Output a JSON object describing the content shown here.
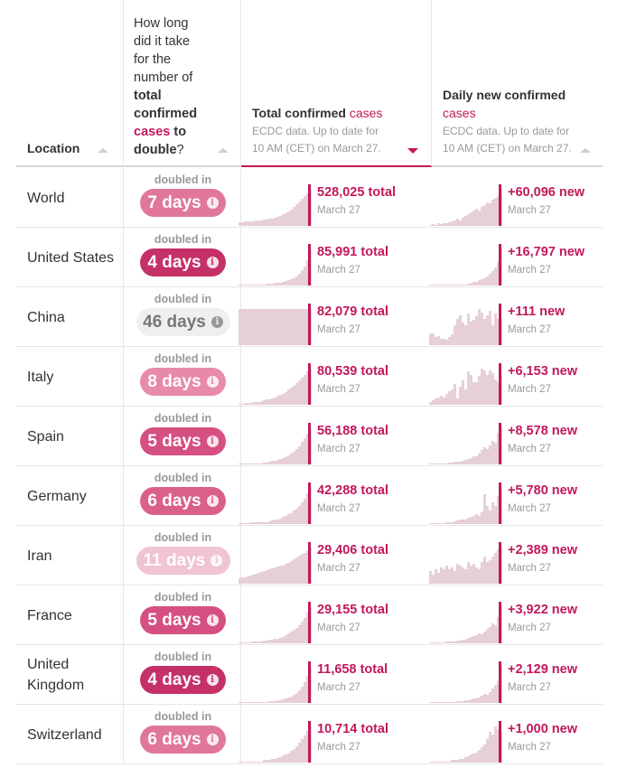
{
  "header": {
    "location": "Location",
    "doubling": {
      "line1": "How long did it take for the number of",
      "bold1": "total confirmed",
      "pink": "cases",
      "bold2": "to",
      "bold3": "double",
      "end": "?"
    },
    "total": {
      "title": "Total confirmed",
      "title_pink": "cases",
      "sub1": "ECDC data. Up to date for",
      "sub2": "10 AM (CET) on March 27."
    },
    "daily": {
      "title": "Daily new confirmed",
      "title_pink": "cases",
      "sub1": "ECDC data. Up to date for",
      "sub2": "10 AM (CET) on March 27."
    }
  },
  "doubled_label": "doubled in",
  "colors": {
    "accent": "#c2185b",
    "spark": "#e7cfd8"
  },
  "rows": [
    {
      "name": "World",
      "days": "7 days",
      "total": "528,025 total",
      "daily": "+60,096 new",
      "date": "March 27",
      "pill": "#e0779b",
      "total_series": [
        8,
        8,
        9,
        9,
        10,
        10,
        11,
        11,
        12,
        13,
        14,
        15,
        16,
        18,
        20,
        22,
        25,
        28,
        31,
        35,
        40,
        46,
        52,
        58,
        64,
        71,
        78
      ],
      "daily_series": [
        2,
        3,
        2,
        4,
        3,
        4,
        5,
        6,
        7,
        9,
        12,
        10,
        14,
        17,
        20,
        24,
        26,
        30,
        27,
        33,
        36,
        40,
        38,
        45,
        48,
        51,
        62
      ]
    },
    {
      "name": "United States",
      "days": "4 days",
      "total": "85,991 total",
      "daily": "+16,797 new",
      "date": "March 27",
      "pill": "#c53167",
      "total_series": [
        1,
        1,
        1,
        1,
        1,
        1,
        2,
        2,
        2,
        2,
        3,
        3,
        3,
        4,
        4,
        5,
        6,
        7,
        8,
        10,
        12,
        15,
        19,
        24,
        31,
        40,
        58
      ],
      "daily_series": [
        0,
        0,
        0,
        0,
        0,
        1,
        1,
        1,
        1,
        1,
        1,
        2,
        2,
        2,
        3,
        4,
        5,
        6,
        8,
        10,
        12,
        14,
        18,
        23,
        28,
        37,
        57
      ]
    },
    {
      "name": "China",
      "days": "46 days",
      "total": "82,079 total",
      "daily": "+111 new",
      "date": "March 27",
      "pill": "#efefef",
      "pill_text": "#777",
      "total_series": [
        62,
        62,
        62,
        62,
        62,
        62,
        62,
        62,
        62,
        62,
        62,
        62,
        62,
        62,
        62,
        62,
        62,
        62,
        62,
        62,
        62,
        62,
        62,
        62,
        62,
        62,
        62
      ],
      "daily_series": [
        18,
        18,
        12,
        14,
        10,
        10,
        8,
        12,
        16,
        30,
        40,
        45,
        34,
        30,
        48,
        36,
        38,
        44,
        55,
        50,
        40,
        46,
        52,
        30,
        48,
        40,
        40
      ]
    },
    {
      "name": "Italy",
      "days": "8 days",
      "total": "80,539 total",
      "daily": "+6,153 new",
      "date": "March 27",
      "pill": "#e88aaa",
      "total_series": [
        2,
        2,
        3,
        3,
        3,
        4,
        4,
        5,
        6,
        7,
        8,
        9,
        10,
        12,
        14,
        16,
        18,
        21,
        24,
        27,
        31,
        35,
        39,
        44,
        48,
        53,
        58
      ],
      "daily_series": [
        4,
        6,
        8,
        10,
        12,
        9,
        14,
        18,
        20,
        28,
        8,
        24,
        32,
        20,
        44,
        40,
        30,
        30,
        38,
        48,
        46,
        40,
        46,
        42,
        34,
        30,
        40
      ]
    },
    {
      "name": "Spain",
      "days": "5 days",
      "total": "56,188 total",
      "daily": "+8,578 new",
      "date": "March 27",
      "pill": "#d55080",
      "total_series": [
        1,
        1,
        1,
        1,
        1,
        1,
        2,
        2,
        2,
        3,
        3,
        4,
        5,
        6,
        7,
        8,
        10,
        12,
        14,
        17,
        20,
        24,
        29,
        35,
        42,
        49,
        57
      ],
      "daily_series": [
        0,
        1,
        1,
        1,
        1,
        1,
        1,
        2,
        2,
        3,
        3,
        4,
        5,
        6,
        7,
        8,
        10,
        10,
        14,
        18,
        22,
        20,
        24,
        30,
        28,
        40,
        46
      ]
    },
    {
      "name": "Germany",
      "days": "6 days",
      "total": "42,288 total",
      "daily": "+5,780 new",
      "date": "March 27",
      "pill": "#da6088",
      "total_series": [
        1,
        1,
        1,
        1,
        2,
        2,
        2,
        2,
        3,
        3,
        3,
        4,
        5,
        6,
        7,
        8,
        10,
        12,
        14,
        16,
        19,
        22,
        26,
        31,
        37,
        44,
        52
      ],
      "daily_series": [
        1,
        1,
        1,
        1,
        1,
        1,
        2,
        2,
        2,
        3,
        4,
        5,
        5,
        6,
        8,
        9,
        10,
        12,
        10,
        14,
        36,
        22,
        16,
        26,
        22,
        34,
        44
      ]
    },
    {
      "name": "Iran",
      "days": "11 days",
      "total": "29,406 total",
      "daily": "+2,389 new",
      "date": "March 27",
      "pill": "#f0c4d3",
      "total_series": [
        6,
        7,
        8,
        9,
        10,
        11,
        12,
        13,
        14,
        15,
        16,
        17,
        18,
        19,
        20,
        21,
        22,
        24,
        25,
        27,
        29,
        31,
        33,
        35,
        37,
        40,
        43
      ],
      "daily_series": [
        14,
        10,
        16,
        12,
        18,
        16,
        20,
        16,
        18,
        14,
        22,
        20,
        18,
        16,
        24,
        20,
        22,
        18,
        16,
        24,
        30,
        24,
        26,
        30,
        34,
        38,
        40
      ]
    },
    {
      "name": "France",
      "days": "5 days",
      "total": "29,155 total",
      "daily": "+3,922 new",
      "date": "March 27",
      "pill": "#d55080",
      "total_series": [
        1,
        1,
        1,
        1,
        1,
        2,
        2,
        2,
        2,
        3,
        3,
        4,
        4,
        5,
        6,
        7,
        8,
        10,
        12,
        14,
        16,
        19,
        22,
        26,
        31,
        37,
        44
      ],
      "daily_series": [
        1,
        1,
        1,
        1,
        1,
        1,
        2,
        2,
        2,
        2,
        3,
        3,
        4,
        4,
        5,
        6,
        7,
        8,
        10,
        9,
        12,
        14,
        16,
        20,
        18,
        26,
        36
      ]
    },
    {
      "name": "United Kingdom",
      "days": "4 days",
      "total": "11,658 total",
      "daily": "+2,129 new",
      "date": "March 27",
      "pill": "#c53167",
      "total_series": [
        0,
        0,
        0,
        0,
        0,
        1,
        1,
        1,
        1,
        1,
        1,
        2,
        2,
        2,
        3,
        3,
        4,
        5,
        6,
        7,
        9,
        11,
        14,
        18,
        23,
        30,
        40
      ],
      "daily_series": [
        0,
        0,
        0,
        0,
        1,
        1,
        1,
        1,
        1,
        1,
        2,
        2,
        2,
        3,
        3,
        4,
        5,
        5,
        6,
        8,
        10,
        9,
        12,
        16,
        20,
        24,
        40
      ]
    },
    {
      "name": "Switzerland",
      "days": "6 days",
      "total": "10,714 total",
      "daily": "+1,000 new",
      "date": "March 27",
      "pill": "#e0779b",
      "total_series": [
        0,
        0,
        0,
        0,
        1,
        1,
        1,
        1,
        1,
        2,
        2,
        2,
        3,
        3,
        4,
        5,
        6,
        7,
        8,
        10,
        12,
        14,
        17,
        20,
        23,
        27,
        31
      ],
      "daily_series": [
        0,
        0,
        0,
        0,
        0,
        1,
        1,
        1,
        2,
        2,
        2,
        3,
        3,
        4,
        5,
        6,
        7,
        8,
        10,
        12,
        14,
        18,
        24,
        22,
        28,
        26,
        24
      ]
    }
  ]
}
